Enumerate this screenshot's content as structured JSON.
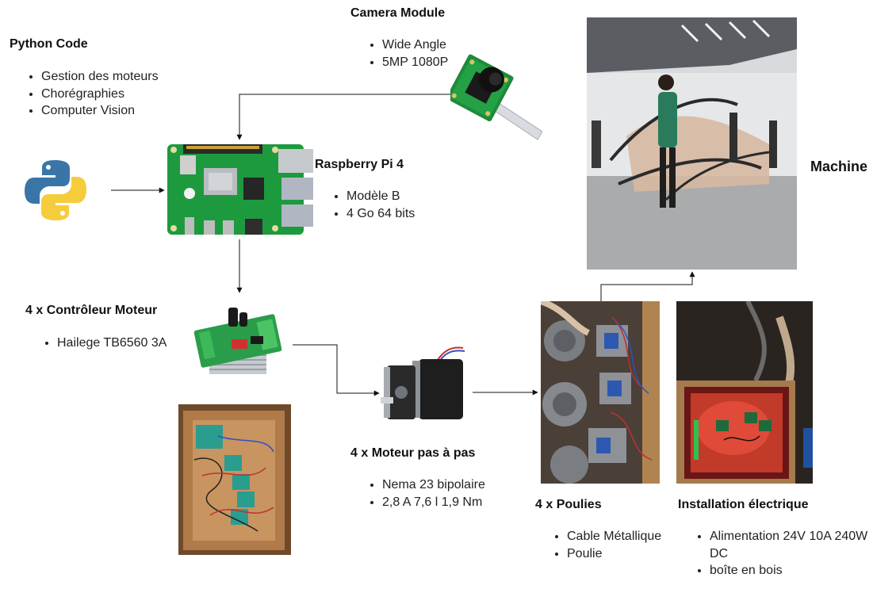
{
  "python": {
    "title": "Python Code",
    "items": [
      "Gestion des moteurs",
      "Chorégraphies",
      "Computer Vision"
    ],
    "icon": "python-logo-icon"
  },
  "camera": {
    "title": "Camera Module",
    "items": [
      "Wide Angle",
      "5MP 1080P"
    ]
  },
  "raspberry": {
    "title": "Raspberry Pi 4",
    "items": [
      "Modèle B",
      "4 Go 64 bits"
    ]
  },
  "controller": {
    "title": "4 x Contrôleur Moteur",
    "items": [
      "Hailege TB6560 3A"
    ]
  },
  "motor": {
    "title": "4 x Moteur pas à pas",
    "items": [
      "Nema 23 bipolaire",
      "2,8 A 7,6 l 1,9 Nm"
    ]
  },
  "pulleys": {
    "title": "4 x Poulies",
    "items": [
      "Cable Métallique",
      "Poulie"
    ]
  },
  "electrical": {
    "title": "Installation électrique",
    "items": [
      "Alimentation 24V 10A 240W DC",
      "boîte en bois"
    ]
  },
  "machine": {
    "title": "Machine"
  },
  "colors": {
    "python_blue": "#3a75a8",
    "python_yellow": "#f5cc3c",
    "pcb_green": "#1e9a3e",
    "wire": "#111111"
  }
}
